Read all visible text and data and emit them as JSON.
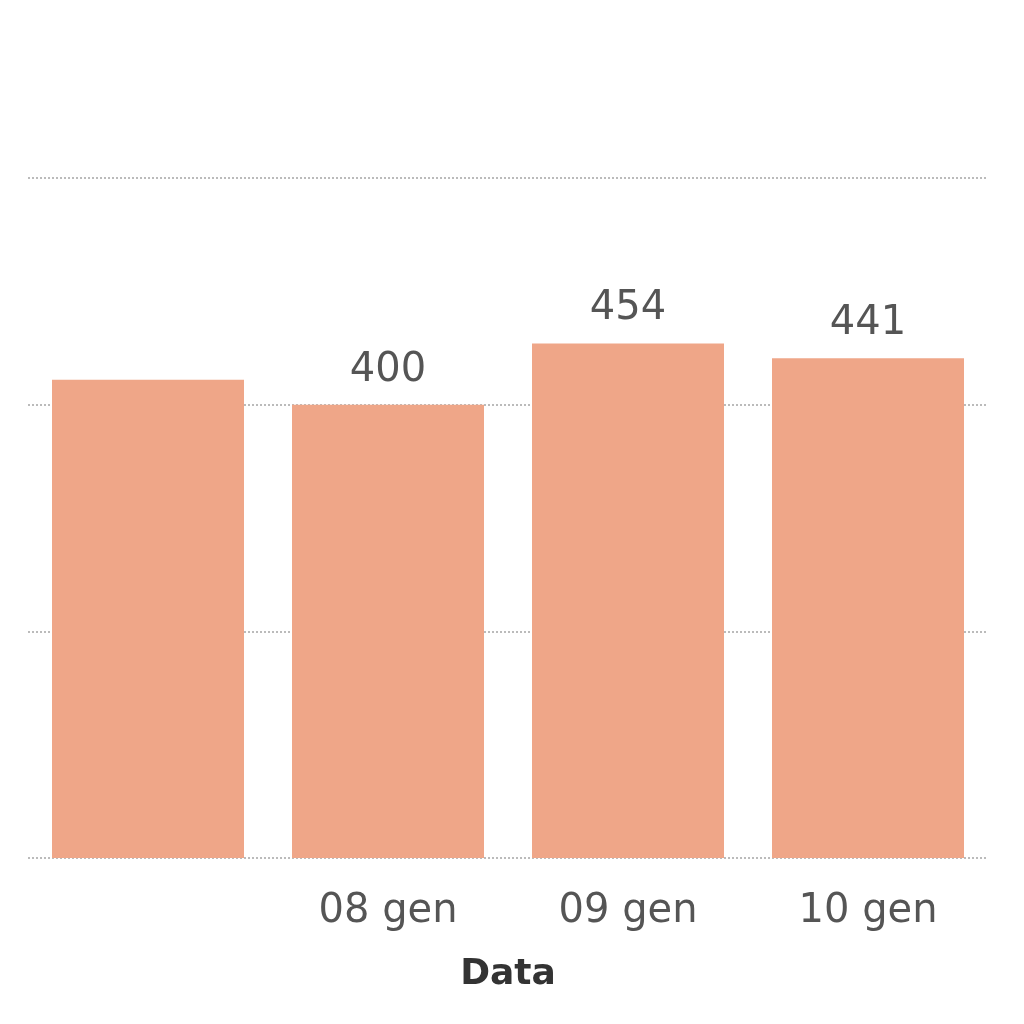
{
  "chart_data": {
    "type": "bar",
    "xlabel": "Data",
    "categories": [
      null,
      "08 gen",
      "09 gen",
      "10 gen"
    ],
    "values": [
      422,
      400,
      454,
      441
    ],
    "value_labels": [
      null,
      "400",
      "454",
      "441"
    ],
    "color": "#efa688",
    "ylim": [
      0,
      600
    ],
    "yticks": [
      {
        "value": 0,
        "label": null
      },
      {
        "value": 200,
        "label": null
      },
      {
        "value": 400,
        "label": null
      },
      {
        "value": 600,
        "label": null
      }
    ],
    "grid": "y"
  }
}
